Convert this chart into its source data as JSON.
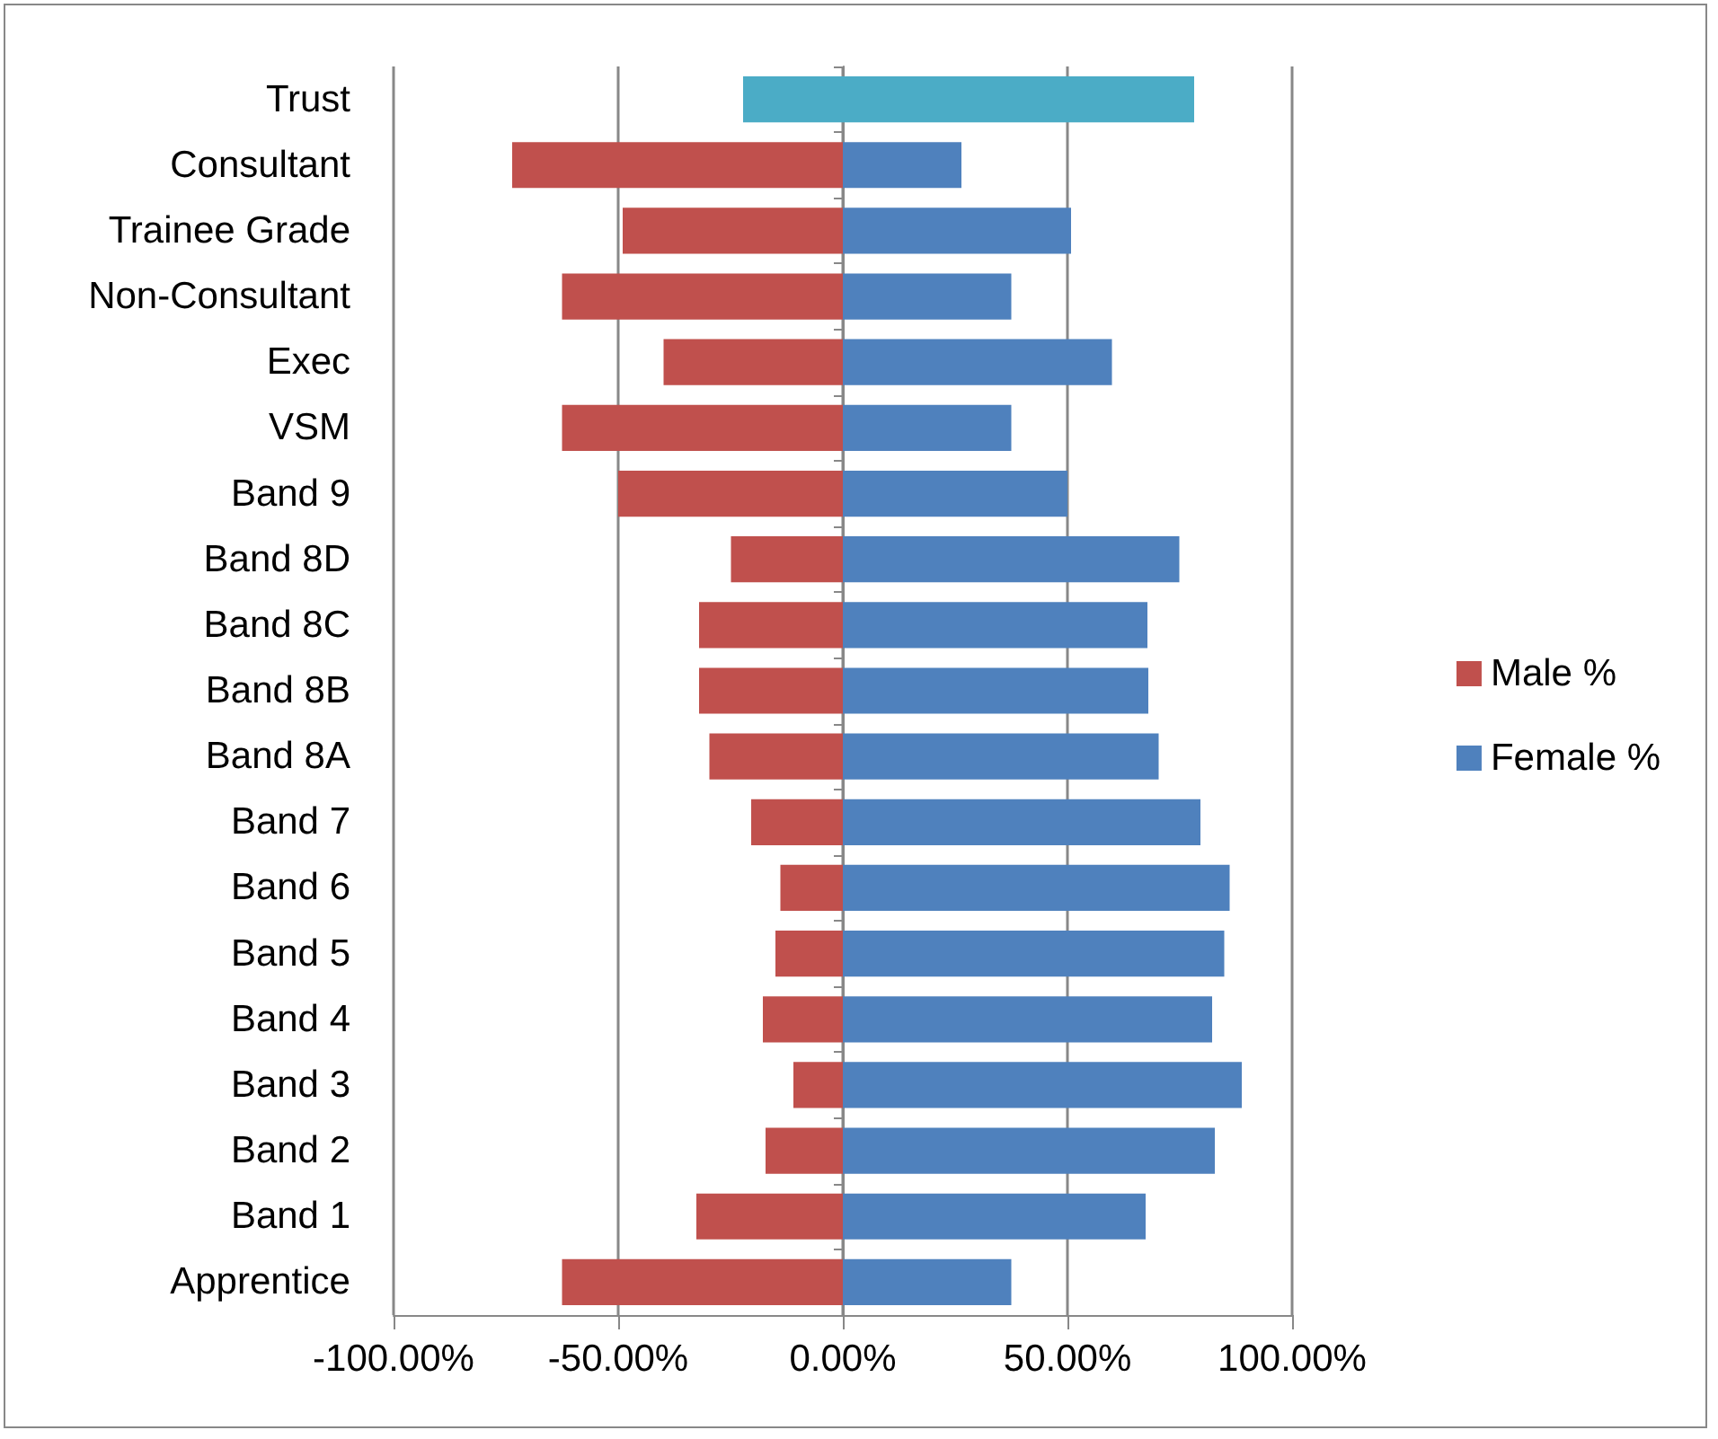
{
  "chart_data": {
    "type": "bar",
    "orientation": "horizontal",
    "stacked": true,
    "categories": [
      "Trust",
      "Consultant",
      "Trainee Grade",
      "Non-Consultant",
      "Exec",
      "VSM",
      "Band 9",
      "Band 8D",
      "Band 8C",
      "Band 8B",
      "Band 8A",
      "Band 7",
      "Band 6",
      "Band 5",
      "Band 4",
      "Band 3",
      "Band 2",
      "Band 1",
      "Apprentice"
    ],
    "series": [
      {
        "name": "Male %",
        "color": "#c0504d",
        "colors": [
          "#4bacc6",
          "#c0504d",
          "#c0504d",
          "#c0504d",
          "#c0504d",
          "#c0504d",
          "#c0504d",
          "#c0504d",
          "#c0504d",
          "#c0504d",
          "#c0504d",
          "#c0504d",
          "#c0504d",
          "#c0504d",
          "#c0504d",
          "#c0504d",
          "#c0504d",
          "#c0504d",
          "#c0504d"
        ],
        "values": [
          -22.2,
          -73.6,
          -49,
          -62.5,
          -39.9,
          -62.5,
          -50,
          -24.9,
          -32,
          -32,
          -29.7,
          -20.4,
          -13.9,
          -15,
          -17.8,
          -11,
          -17.2,
          -32.6,
          -62.5
        ]
      },
      {
        "name": "Female %",
        "color": "#4f81bd",
        "colors": [
          "#4bacc6",
          "#4f81bd",
          "#4f81bd",
          "#4f81bd",
          "#4f81bd",
          "#4f81bd",
          "#4f81bd",
          "#4f81bd",
          "#4f81bd",
          "#4f81bd",
          "#4f81bd",
          "#4f81bd",
          "#4f81bd",
          "#4f81bd",
          "#4f81bd",
          "#4f81bd",
          "#4f81bd",
          "#4f81bd",
          "#4f81bd"
        ],
        "values": [
          78.2,
          26.4,
          50.8,
          37.5,
          59.9,
          37.5,
          50,
          74.9,
          67.8,
          68,
          70.3,
          79.6,
          86.1,
          84.9,
          82.2,
          88.8,
          82.8,
          67.4,
          37.5
        ]
      }
    ],
    "xlim": [
      -100,
      100
    ],
    "xticks": [
      {
        "value": -100,
        "label": "-100.00%"
      },
      {
        "value": -50,
        "label": "-50.00%"
      },
      {
        "value": 0,
        "label": "0.00%"
      },
      {
        "value": 50,
        "label": "50.00%"
      },
      {
        "value": 100,
        "label": "100.00%"
      }
    ],
    "grid": "x",
    "legend": "right"
  }
}
